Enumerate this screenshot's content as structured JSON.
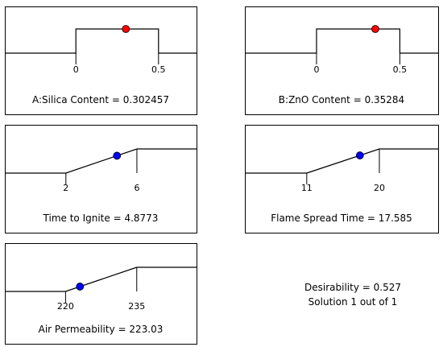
{
  "chart_data": [
    {
      "type": "line",
      "kind": "factor",
      "name": "A:Silica Content",
      "caption": "A:Silica Content = 0.302457",
      "xlim": [
        -0.43,
        0.73
      ],
      "range": [
        0,
        0.5
      ],
      "ticks": [
        "0",
        "0.5"
      ],
      "tick_values": [
        0,
        0.5
      ],
      "value": 0.302457,
      "marker_color": "#ff0000"
    },
    {
      "type": "line",
      "kind": "factor",
      "name": "B:ZnO Content",
      "caption": "B:ZnO Content = 0.35284",
      "xlim": [
        -0.43,
        0.73
      ],
      "range": [
        0,
        0.5
      ],
      "ticks": [
        "0",
        "0.5"
      ],
      "tick_values": [
        0,
        0.5
      ],
      "value": 0.35284,
      "marker_color": "#ff0000"
    },
    {
      "type": "line",
      "kind": "response",
      "name": "Time to Ignite",
      "caption": "Time to Ignite = 4.8773",
      "xlim": [
        -1.44,
        9.36
      ],
      "low": 2,
      "high": 6,
      "ticks": [
        "2",
        "6"
      ],
      "tick_values": [
        2,
        6
      ],
      "value": 4.8773,
      "marker_color": "#0000ff"
    },
    {
      "type": "line",
      "kind": "response",
      "name": "Flame Spread Time",
      "caption": "Flame Spread Time = 17.585",
      "xlim": [
        3.33,
        27.29
      ],
      "low": 11,
      "high": 20,
      "ticks": [
        "11",
        "20"
      ],
      "tick_values": [
        11,
        20
      ],
      "value": 17.585,
      "marker_color": "#0000ff"
    },
    {
      "type": "line",
      "kind": "response",
      "name": "Air Permeability",
      "caption": "Air Permeability = 223.03",
      "xlim": [
        207.2,
        247.6
      ],
      "low": 220,
      "high": 235,
      "ticks": [
        "220",
        "235"
      ],
      "tick_values": [
        220,
        235
      ],
      "value": 223.03,
      "marker_color": "#0000ff"
    }
  ],
  "summary": {
    "desirability": "Desirability = 0.527",
    "solution": "Solution 1 out of 1"
  }
}
